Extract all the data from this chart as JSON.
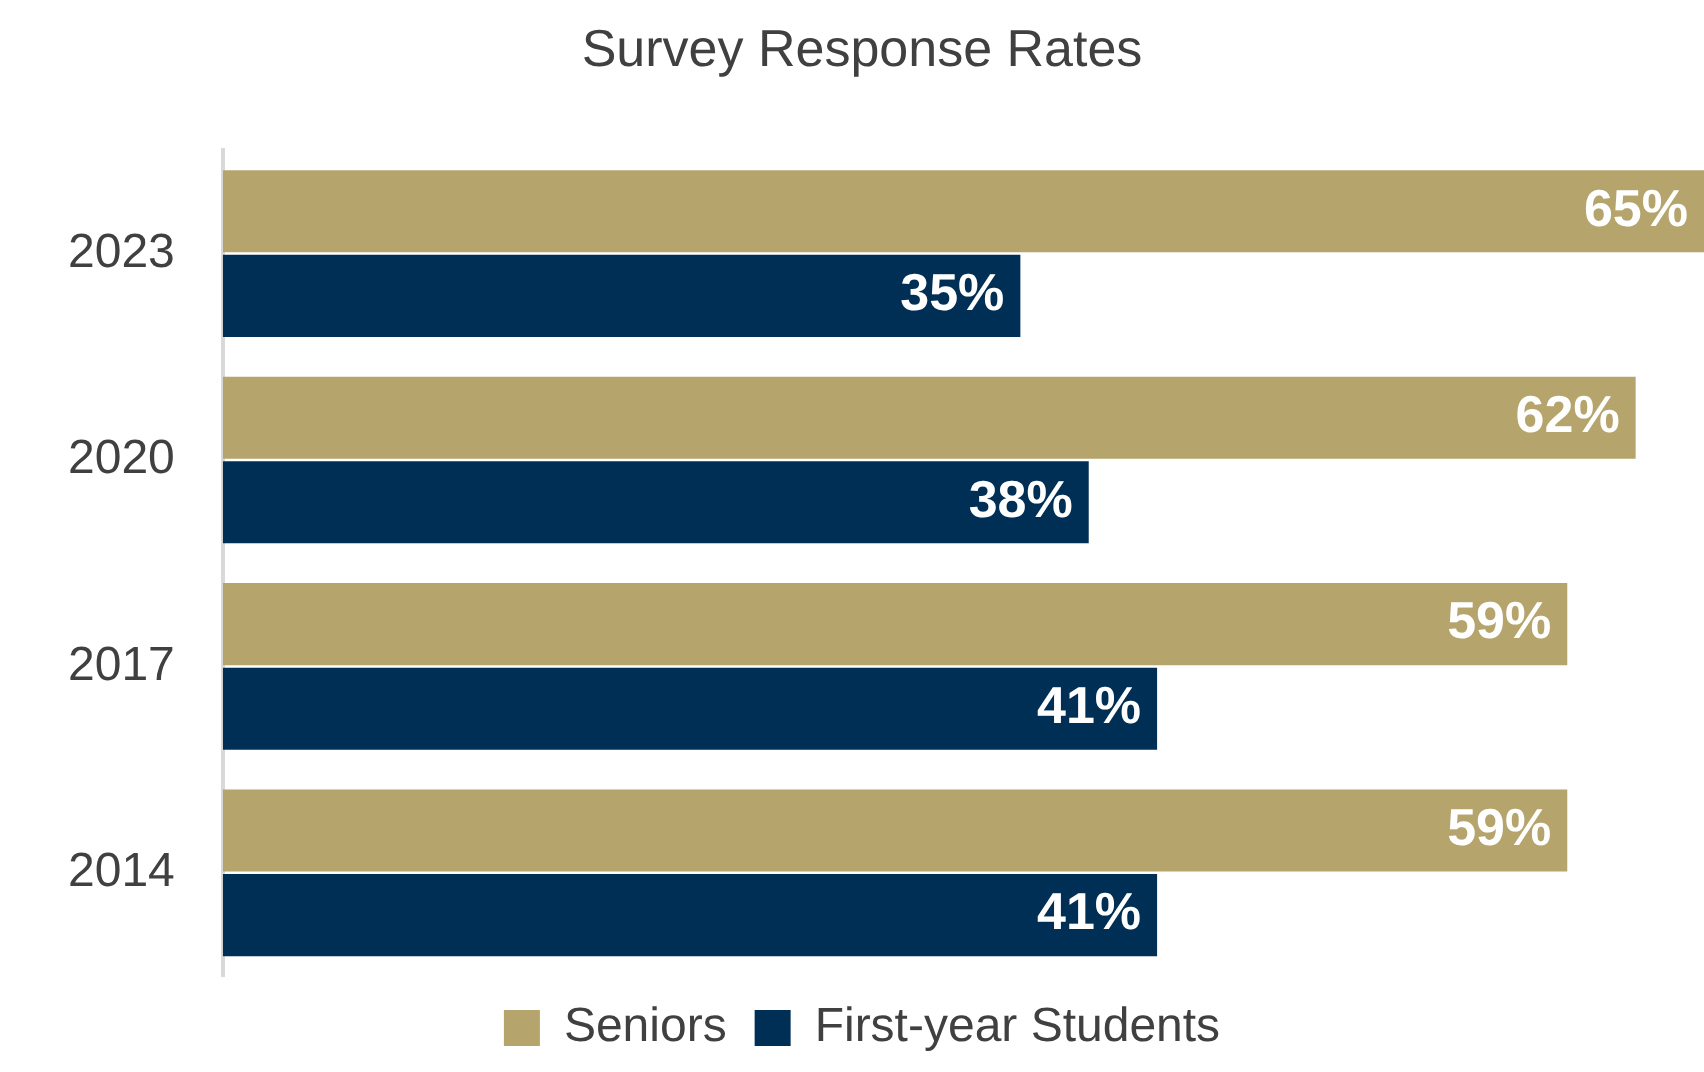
{
  "chart_data": {
    "type": "bar",
    "orientation": "horizontal",
    "title": "Survey Response Rates",
    "categories": [
      "2023",
      "2020",
      "2017",
      "2014"
    ],
    "series": [
      {
        "name": "Seniors",
        "color": "#b5a46b",
        "values": [
          65,
          62,
          59,
          59
        ],
        "value_labels": [
          "65%",
          "62%",
          "59%",
          "59%"
        ]
      },
      {
        "name": "First-year Students",
        "color": "#002f56",
        "values": [
          35,
          38,
          41,
          41
        ],
        "value_labels": [
          "35%",
          "38%",
          "41%",
          "41%"
        ]
      }
    ],
    "grid": false,
    "legend": "bottom"
  }
}
